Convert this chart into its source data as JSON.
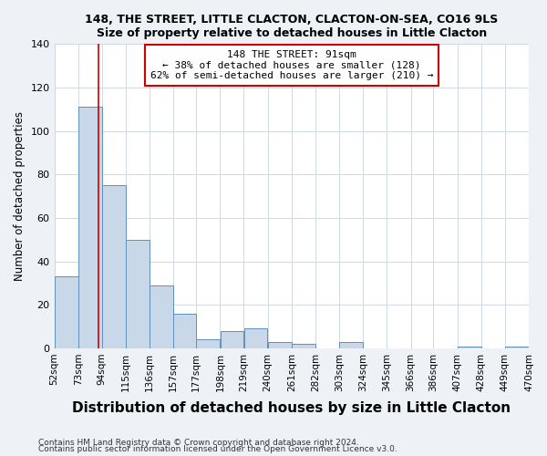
{
  "title": "148, THE STREET, LITTLE CLACTON, CLACTON-ON-SEA, CO16 9LS",
  "subtitle": "Size of property relative to detached houses in Little Clacton",
  "xlabel": "Distribution of detached houses by size in Little Clacton",
  "ylabel": "Number of detached properties",
  "bin_edges": [
    52,
    73,
    94,
    115,
    136,
    157,
    177,
    198,
    219,
    240,
    261,
    282,
    303,
    324,
    345,
    366,
    386,
    407,
    428,
    449,
    470
  ],
  "bin_counts": [
    33,
    111,
    75,
    50,
    29,
    16,
    4,
    8,
    9,
    3,
    2,
    0,
    3,
    0,
    0,
    0,
    0,
    1,
    0,
    1
  ],
  "bar_color": "#c8d8e8",
  "bar_edge_color": "#6090b8",
  "vline_x": 91,
  "vline_color": "#cc0000",
  "annotation_title": "148 THE STREET: 91sqm",
  "annotation_line1": "← 38% of detached houses are smaller (128)",
  "annotation_line2": "62% of semi-detached houses are larger (210) →",
  "annotation_box_color": "#cc0000",
  "ylim": [
    0,
    140
  ],
  "yticks": [
    0,
    20,
    40,
    60,
    80,
    100,
    120,
    140
  ],
  "tick_labels": [
    "52sqm",
    "73sqm",
    "94sqm",
    "115sqm",
    "136sqm",
    "157sqm",
    "177sqm",
    "198sqm",
    "219sqm",
    "240sqm",
    "261sqm",
    "282sqm",
    "303sqm",
    "324sqm",
    "345sqm",
    "366sqm",
    "386sqm",
    "407sqm",
    "428sqm",
    "449sqm",
    "470sqm"
  ],
  "footer1": "Contains HM Land Registry data © Crown copyright and database right 2024.",
  "footer2": "Contains public sector information licensed under the Open Government Licence v3.0.",
  "bg_color": "#eef2f7",
  "plot_bg_color": "#ffffff",
  "grid_color": "#d0d8e4"
}
